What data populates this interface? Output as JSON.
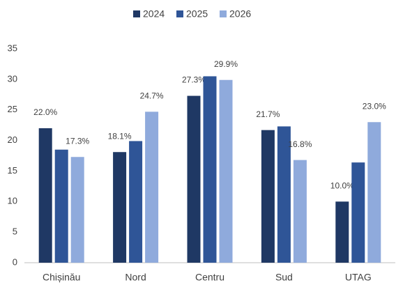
{
  "chart_data": {
    "type": "bar",
    "categories": [
      "Chișinău",
      "Nord",
      "Centru",
      "Sud",
      "UTAG"
    ],
    "series": [
      {
        "name": "2024",
        "color": "#1f3864",
        "values": [
          22.0,
          18.1,
          27.3,
          21.7,
          10.0
        ],
        "value_labels": [
          "22.0%",
          "18.1%",
          "27.3%",
          "21.7%",
          "10.0%"
        ]
      },
      {
        "name": "2025",
        "color": "#2f5597",
        "values": [
          18.5,
          19.9,
          30.5,
          22.3,
          16.4
        ]
      },
      {
        "name": "2026",
        "color": "#8faadc",
        "values": [
          17.3,
          24.7,
          29.9,
          16.8,
          23.0
        ],
        "value_labels": [
          "17.3%",
          "24.7%",
          "29.9%",
          "16.8%",
          "23.0%"
        ]
      }
    ],
    "ylim": [
      0,
      35
    ],
    "yticks": [
      0,
      5,
      10,
      15,
      20,
      25,
      30,
      35
    ],
    "grid": false,
    "legend": "top"
  }
}
